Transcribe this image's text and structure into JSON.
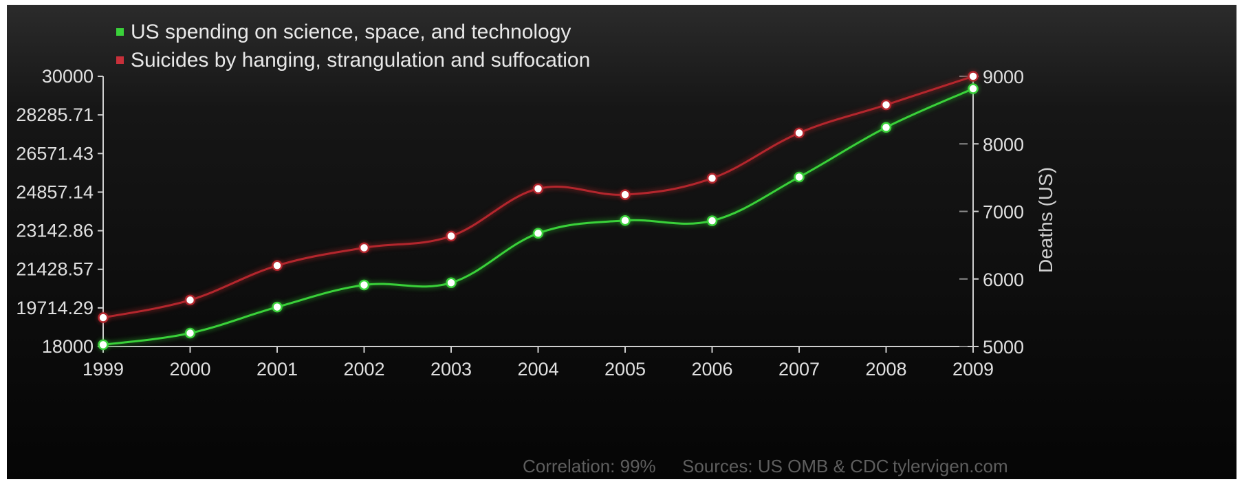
{
  "chart_data": {
    "type": "line",
    "x": [
      "1999",
      "2000",
      "2001",
      "2002",
      "2003",
      "2004",
      "2005",
      "2006",
      "2007",
      "2008",
      "2009"
    ],
    "series": [
      {
        "name": "US spending on science, space, and technology",
        "axis": "left",
        "color": "#3ad13a",
        "values": [
          18079,
          18594,
          19753,
          20734,
          20831,
          23029,
          23597,
          23584,
          25525,
          27731,
          29449
        ]
      },
      {
        "name": "Suicides by hanging, strangulation and suffocation",
        "axis": "right",
        "color": "#b3262d",
        "values": [
          5427,
          5688,
          6198,
          6462,
          6635,
          7336,
          7248,
          7491,
          8161,
          8578,
          9000
        ]
      }
    ],
    "left_axis": {
      "ylim": [
        18000,
        30000
      ],
      "ticks": [
        "30000",
        "28285.71",
        "26571.43",
        "24857.14",
        "23142.86",
        "21428.57",
        "19714.29",
        "18000"
      ]
    },
    "right_axis": {
      "ylim": [
        5000,
        9000
      ],
      "ticks": [
        "9000",
        "8000",
        "7000",
        "6000",
        "5000"
      ],
      "label": "Deaths (US)"
    },
    "x_ticks": [
      "1999",
      "2000",
      "2001",
      "2002",
      "2003",
      "2004",
      "2005",
      "2006",
      "2007",
      "2008",
      "2009"
    ],
    "legend_position": "top-left",
    "grid": false
  },
  "footer": {
    "correlation": "Correlation: 99%",
    "sources": "Sources: US OMB & CDC",
    "site": "tylervigen.com"
  }
}
